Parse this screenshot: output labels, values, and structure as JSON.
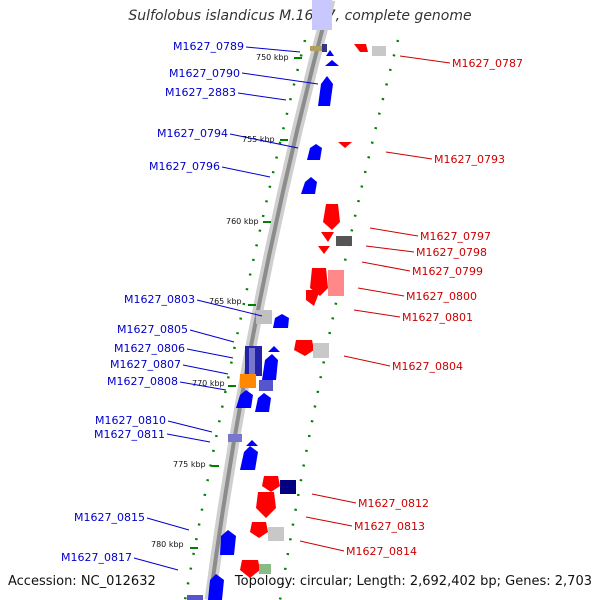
{
  "title": "Sulfolobus islandicus M.16.27, complete genome",
  "accession": "Accession: NC_012632",
  "summary": "Topology: circular; Length: 2,692,402 bp; Genes: 2,703",
  "colors": {
    "plus_strand": "#0000ff",
    "minus_strand": "#ff0000",
    "plus_label": "#0000cc",
    "minus_label": "#cc0000",
    "tick": "#008000",
    "backbone": "#999999"
  },
  "kbp_markers": [
    "750 kbp",
    "755 kbp",
    "760 kbp",
    "765 kbp",
    "770 kbp",
    "775 kbp",
    "780 kbp"
  ],
  "left_labels": [
    "M1627_0789",
    "M1627_0790",
    "M1627_2883",
    "M1627_0794",
    "M1627_0796",
    "M1627_0803",
    "M1627_0805",
    "M1627_0806",
    "M1627_0807",
    "M1627_0808",
    "M1627_0810",
    "M1627_0811",
    "M1627_0815",
    "M1627_0817"
  ],
  "right_labels": [
    "M1627_0787",
    "M1627_0793",
    "M1627_0797",
    "M1627_0798",
    "M1627_0799",
    "M1627_0800",
    "M1627_0801",
    "M1627_0804",
    "M1627_0812",
    "M1627_0813",
    "M1627_0814"
  ]
}
